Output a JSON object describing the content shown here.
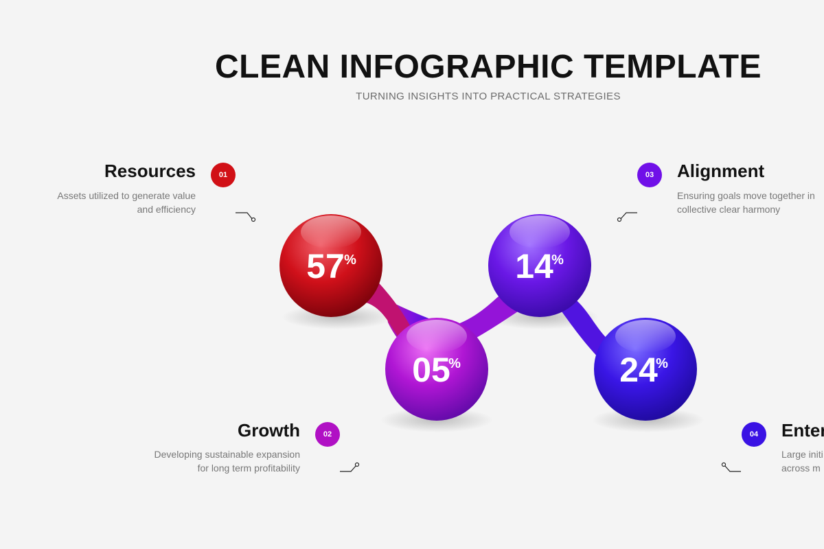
{
  "header": {
    "title": "CLEAN INFOGRAPHIC TEMPLATE",
    "subtitle": "TURNING INSIGHTS INTO PRACTICAL STRATEGIES"
  },
  "items": [
    {
      "number": "01",
      "title": "Resources",
      "line1": "Assets utilized to generate value",
      "line2": "and efficiency",
      "value": "57",
      "unit": "%",
      "color": "#c8101a"
    },
    {
      "number": "02",
      "title": "Growth",
      "line1": "Developing sustainable expansion",
      "line2": "for long term profitability",
      "value": "05",
      "unit": "%",
      "color": "#b214c8"
    },
    {
      "number": "03",
      "title": "Alignment",
      "line1": "Ensuring goals move together in",
      "line2": "collective clear harmony",
      "value": "14",
      "unit": "%",
      "color": "#7010e0"
    },
    {
      "number": "04",
      "title": "Enter",
      "line1": "Large initi",
      "line2": "across m",
      "value": "24",
      "unit": "%",
      "color": "#3a14e0"
    }
  ]
}
